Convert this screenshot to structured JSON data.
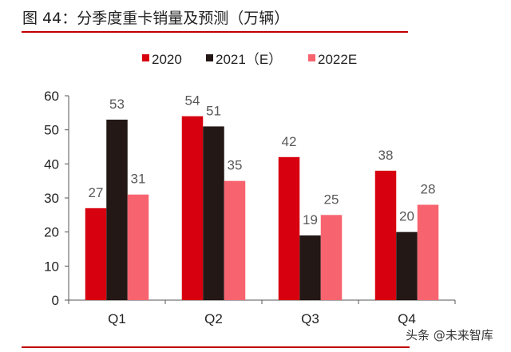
{
  "title": "图 44：分季度重卡销量及预测（万辆）",
  "watermark": "头条 @未来智库",
  "chart_data": {
    "type": "bar",
    "categories": [
      "Q1",
      "Q2",
      "Q3",
      "Q4"
    ],
    "series": [
      {
        "name": "2020",
        "color": "#d7000f",
        "values": [
          27,
          54,
          42,
          38
        ]
      },
      {
        "name": "2021（E）",
        "color": "#231815",
        "values": [
          53,
          51,
          19,
          20
        ]
      },
      {
        "name": "2022E",
        "color": "#f7646f",
        "values": [
          31,
          35,
          25,
          28
        ]
      }
    ],
    "ylim": [
      0,
      60
    ],
    "yticks": [
      0,
      10,
      20,
      30,
      40,
      50,
      60
    ],
    "legend": "top",
    "grid": false,
    "data_label_color": "#595959"
  }
}
